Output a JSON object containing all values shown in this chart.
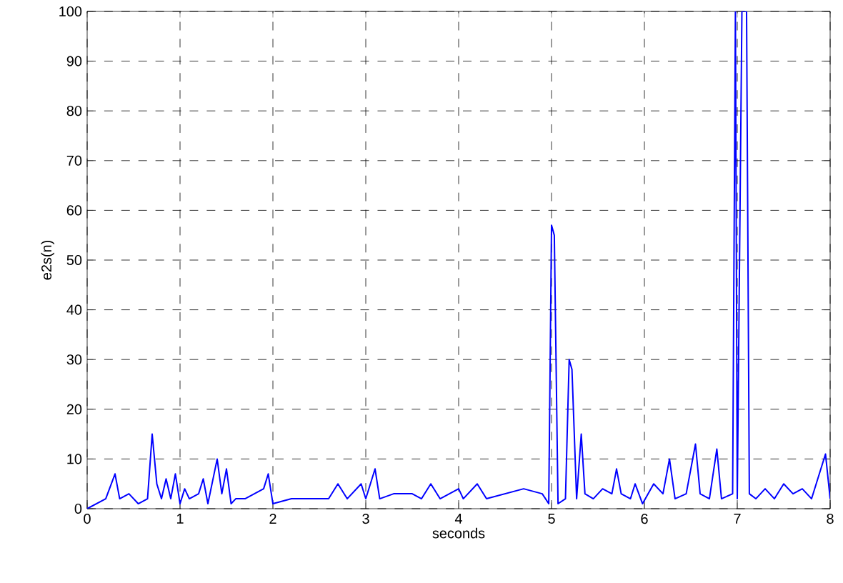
{
  "chart_data": {
    "type": "line",
    "xlabel": "seconds",
    "ylabel": "e2s(n)",
    "xlim": [
      0,
      8
    ],
    "ylim": [
      0,
      100
    ],
    "xticks": [
      0,
      1,
      2,
      3,
      4,
      5,
      6,
      7,
      8
    ],
    "yticks": [
      0,
      10,
      20,
      30,
      40,
      50,
      60,
      70,
      80,
      90,
      100
    ],
    "grid": true,
    "line_style": "solid",
    "series": [
      {
        "color": "#0000ff",
        "x": [
          0,
          0.1,
          0.2,
          0.3,
          0.35,
          0.45,
          0.55,
          0.65,
          0.7,
          0.75,
          0.8,
          0.85,
          0.9,
          0.95,
          1.0,
          1.05,
          1.1,
          1.2,
          1.25,
          1.3,
          1.4,
          1.45,
          1.5,
          1.55,
          1.6,
          1.7,
          1.8,
          1.9,
          1.95,
          2.0,
          2.2,
          2.4,
          2.6,
          2.7,
          2.8,
          2.95,
          3.0,
          3.1,
          3.15,
          3.3,
          3.5,
          3.6,
          3.7,
          3.8,
          4.0,
          4.05,
          4.2,
          4.3,
          4.5,
          4.7,
          4.9,
          4.97,
          5.0,
          5.03,
          5.07,
          5.15,
          5.19,
          5.22,
          5.27,
          5.32,
          5.36,
          5.45,
          5.55,
          5.65,
          5.7,
          5.75,
          5.85,
          5.9,
          5.98,
          6.1,
          6.2,
          6.27,
          6.33,
          6.45,
          6.55,
          6.6,
          6.7,
          6.78,
          6.83,
          6.95,
          6.98,
          7.0,
          7.05,
          7.1,
          7.13,
          7.2,
          7.3,
          7.4,
          7.5,
          7.6,
          7.7,
          7.8,
          7.95,
          8.0
        ],
        "values": [
          0,
          1,
          2,
          7,
          2,
          3,
          1,
          2,
          15,
          5,
          2,
          6,
          2,
          7,
          1,
          4,
          2,
          3,
          6,
          1,
          10,
          3,
          8,
          1,
          2,
          2,
          3,
          4,
          7,
          1,
          2,
          2,
          2,
          5,
          2,
          5,
          2,
          8,
          2,
          3,
          3,
          2,
          5,
          2,
          4,
          2,
          5,
          2,
          3,
          4,
          3,
          1,
          57,
          55,
          1,
          2,
          30,
          28,
          2,
          15,
          3,
          2,
          4,
          3,
          8,
          3,
          2,
          5,
          1,
          5,
          3,
          10,
          2,
          3,
          13,
          3,
          2,
          12,
          2,
          3,
          100,
          2,
          100,
          100,
          3,
          2,
          4,
          2,
          5,
          3,
          4,
          2,
          11,
          2
        ]
      }
    ]
  }
}
